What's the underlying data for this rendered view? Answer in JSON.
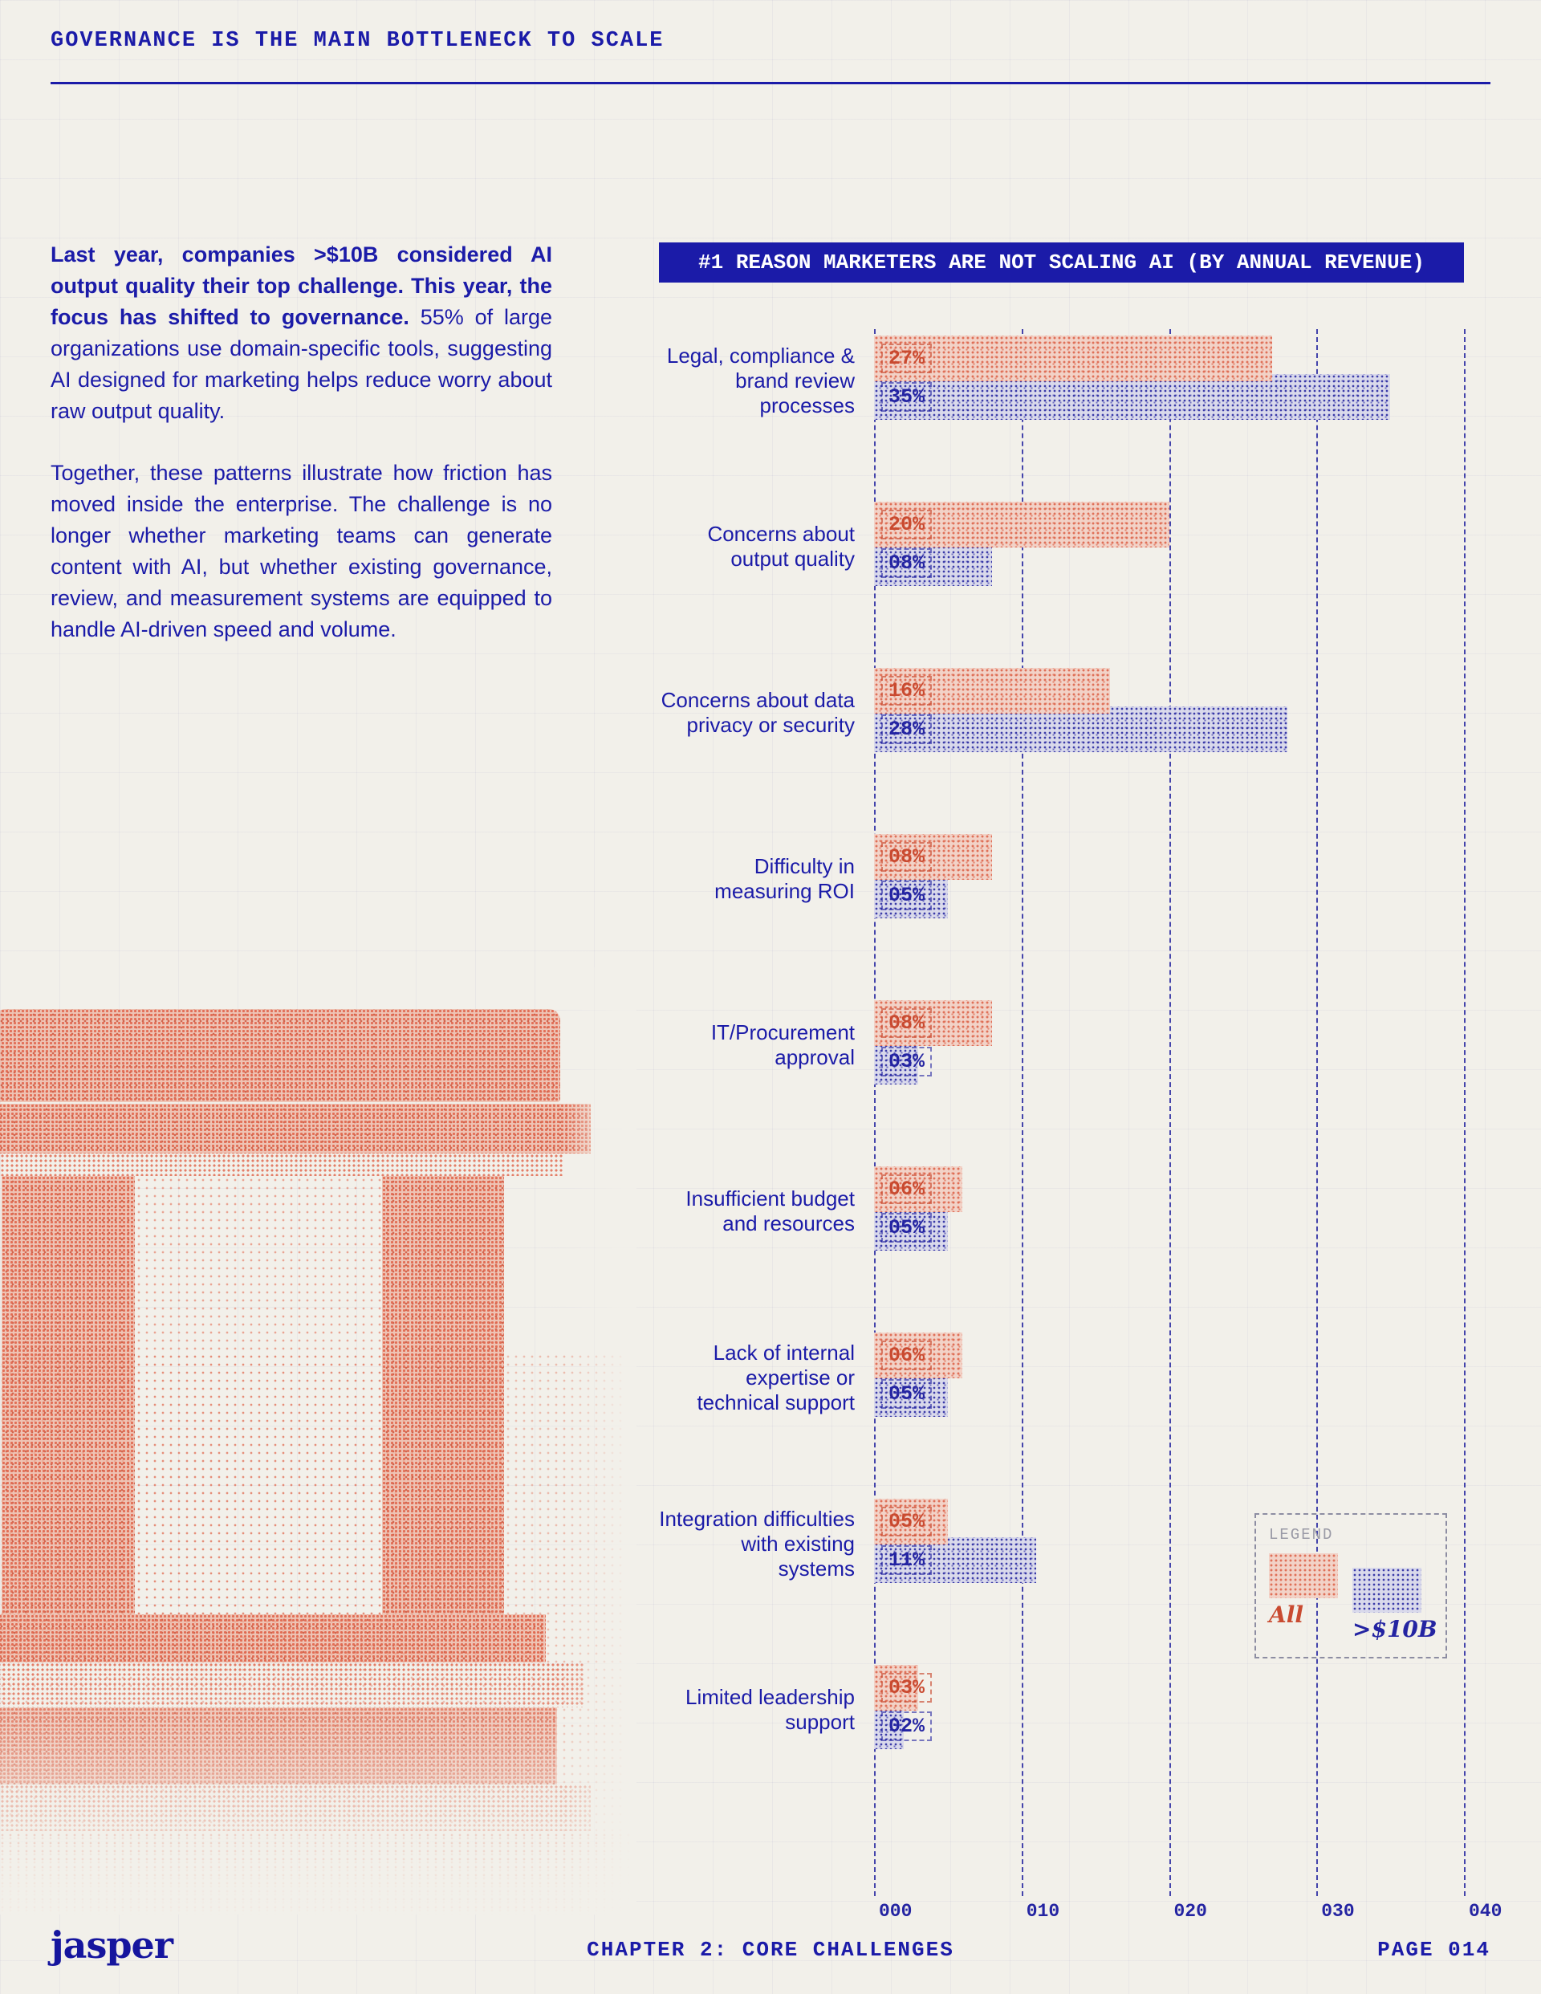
{
  "header": {
    "title": "GOVERNANCE IS THE MAIN BOTTLENECK TO SCALE"
  },
  "intro": {
    "p1_bold": "Last year, companies >$10B considered AI output quality their top challenge. This year, the focus has shifted to governance.",
    "p1_rest": " 55% of large organizations use domain-specific tools, suggesting AI designed for marketing helps reduce worry about raw output quality.",
    "p2": "Together, these patterns illustrate how friction has moved inside the enterprise. The challenge is no longer whether marketing teams can generate content with AI, but whether existing governance, review, and measurement systems are equipped to handle AI-driven speed and volume."
  },
  "chart_data": {
    "type": "bar",
    "orientation": "horizontal",
    "title": "#1 REASON MARKETERS ARE NOT SCALING AI (BY ANNUAL REVENUE)",
    "categories": [
      "Legal, compliance & brand review processes",
      "Concerns about output quality",
      "Concerns about data privacy or security",
      "Difficulty in measuring ROI",
      "IT/Procurement approval",
      "Insufficient budget and resources",
      "Lack of internal expertise or technical support",
      "Integration difficulties with existing systems",
      "Limited leadership support"
    ],
    "series": [
      {
        "name": "All",
        "color": "#e26c52",
        "values": [
          27,
          20,
          16,
          8,
          8,
          6,
          6,
          5,
          3
        ],
        "labels": [
          "27%",
          "20%",
          "16%",
          "08%",
          "08%",
          "06%",
          "06%",
          "05%",
          "03%"
        ]
      },
      {
        "name": ">$10B",
        "color": "#2a2aa2",
        "values": [
          35,
          8,
          28,
          5,
          3,
          5,
          5,
          11,
          2
        ],
        "labels": [
          "35%",
          "08%",
          "28%",
          "05%",
          "03%",
          "05%",
          "05%",
          "11%",
          "02%"
        ]
      }
    ],
    "x_ticks": [
      "000",
      "010",
      "020",
      "030",
      "040"
    ],
    "xlim": [
      0,
      40
    ],
    "grid": "dashed-vertical",
    "legend": {
      "title": "LEGEND",
      "entries": [
        "All",
        ">$10B"
      ],
      "position": "right-bottom"
    }
  },
  "footer": {
    "logo": "jasper",
    "chapter": "CHAPTER 2: CORE CHALLENGES",
    "page_label": "PAGE 014"
  }
}
